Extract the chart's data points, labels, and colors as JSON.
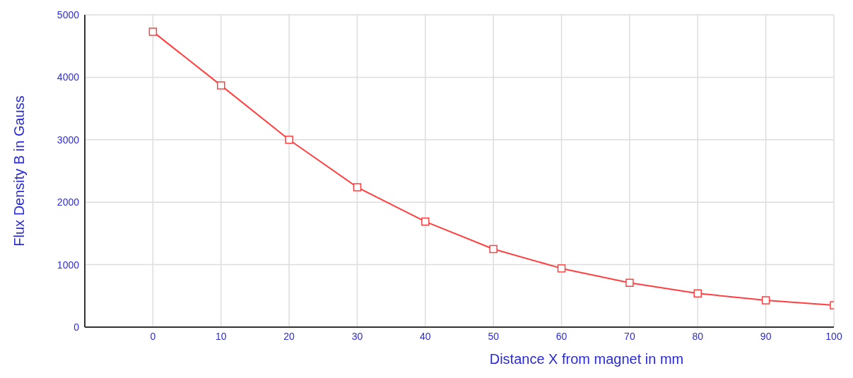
{
  "chart_data": {
    "type": "line",
    "xlabel": "Distance X from magnet in mm",
    "ylabel": "Flux Density B in Gauss",
    "x": [
      0,
      10,
      20,
      30,
      40,
      50,
      60,
      70,
      80,
      90,
      100
    ],
    "series": [
      {
        "color": "#ff4040",
        "values": [
          4730,
          3870,
          3000,
          2240,
          1690,
          1250,
          940,
          710,
          540,
          430,
          350
        ]
      }
    ],
    "xlim": [
      -10,
      100
    ],
    "xticks": [
      0,
      10,
      20,
      30,
      40,
      50,
      60,
      70,
      80,
      90,
      100
    ],
    "ylim": [
      0,
      5000
    ],
    "yticks": [
      0,
      1000,
      2000,
      3000,
      4000,
      5000
    ],
    "grid": true,
    "marker": "square",
    "line_style": "solid"
  }
}
